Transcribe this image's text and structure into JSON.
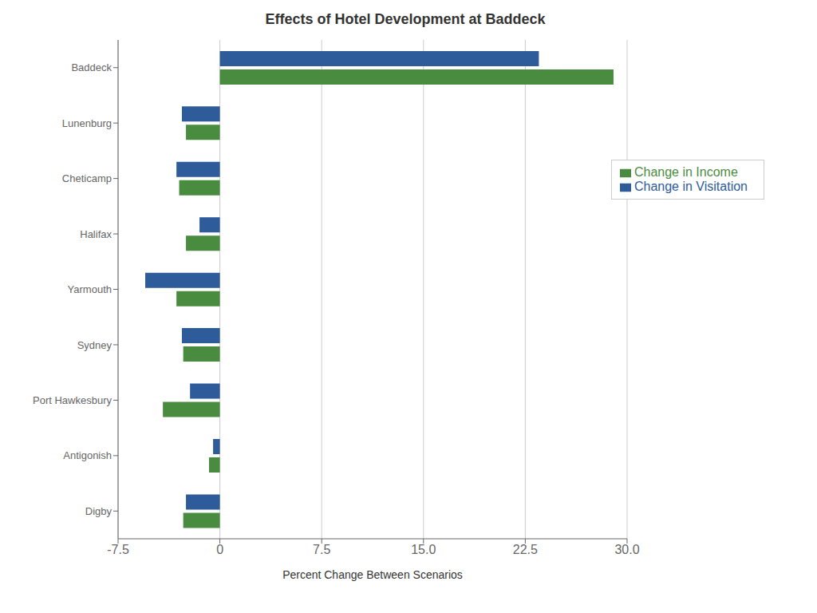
{
  "chart_data": {
    "type": "bar",
    "orientation": "horizontal",
    "title": "Effects of Hotel Development at Baddeck",
    "xlabel": "Percent Change Between Scenarios",
    "categories": [
      "Baddeck",
      "Lunenburg",
      "Cheticamp",
      "Halifax",
      "Yarmouth",
      "Sydney",
      "Port Hawkesbury",
      "Antigonish",
      "Digby"
    ],
    "series": [
      {
        "name": "Change in Visitation",
        "color": "#2E5B9A",
        "values": [
          23.5,
          -2.8,
          -3.2,
          -1.5,
          -5.5,
          -2.8,
          -2.2,
          -0.5,
          -2.5
        ]
      },
      {
        "name": "Change in Income",
        "color": "#4A8C3F",
        "values": [
          29.0,
          -2.5,
          -3.0,
          -2.5,
          -3.2,
          -2.7,
          -4.2,
          -0.8,
          -2.7
        ]
      }
    ],
    "xlim": [
      -7.5,
      30.0
    ],
    "xticks": [
      -7.5,
      0,
      7.5,
      {
        "value": 15.0,
        "label": "15.0"
      },
      22.5,
      {
        "value": 30.0,
        "label": "30.0"
      }
    ],
    "grid": true,
    "legend": "upper right"
  }
}
